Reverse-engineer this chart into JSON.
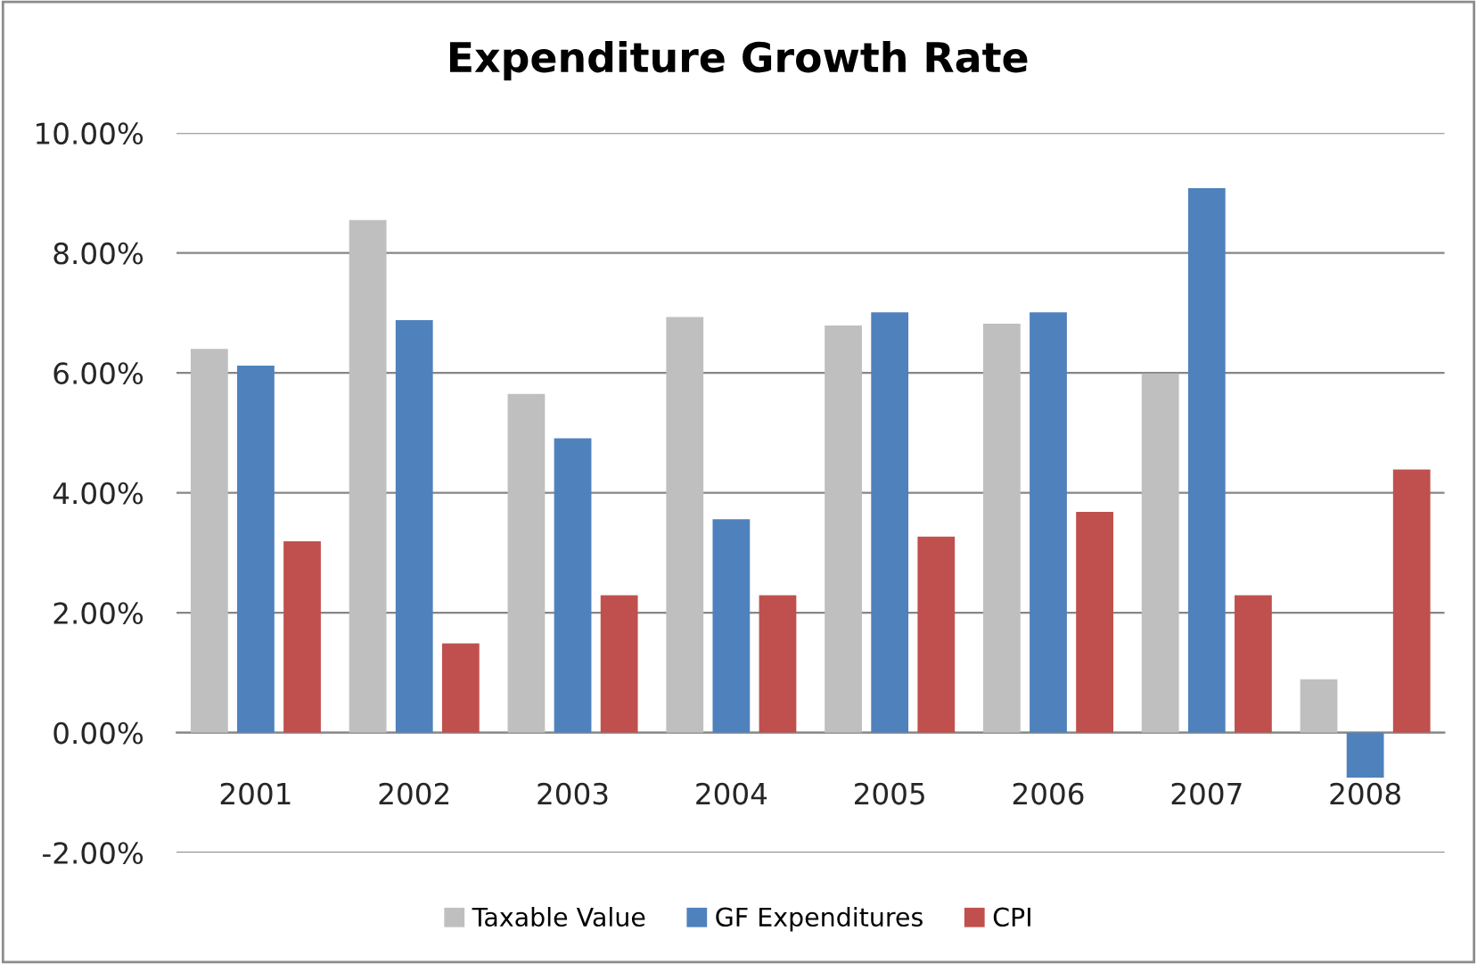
{
  "chart_data": {
    "type": "bar",
    "title": "Expenditure Growth Rate",
    "categories": [
      "2001",
      "2002",
      "2003",
      "2004",
      "2005",
      "2006",
      "2007",
      "2008"
    ],
    "series": [
      {
        "name": "Taxable Value",
        "color": "#bfbfbf",
        "values": [
          6.4,
          8.55,
          5.65,
          6.93,
          6.79,
          6.82,
          5.99,
          0.89
        ]
      },
      {
        "name": "GF Expenditures",
        "color": "#4f81bd",
        "values": [
          6.12,
          6.88,
          4.91,
          3.56,
          7.01,
          7.01,
          9.08,
          -0.75
        ]
      },
      {
        "name": "CPI",
        "color": "#c0504d",
        "values": [
          3.19,
          1.49,
          2.29,
          2.29,
          3.27,
          3.68,
          2.29,
          4.39
        ]
      }
    ],
    "ylim": [
      -2,
      10
    ],
    "yticks": [
      {
        "value": -2,
        "label": "-2.00%"
      },
      {
        "value": 0,
        "label": "0.00%"
      },
      {
        "value": 2,
        "label": "2.00%"
      },
      {
        "value": 4,
        "label": "4.00%"
      },
      {
        "value": 6,
        "label": "6.00%"
      },
      {
        "value": 8,
        "label": "8.00%"
      },
      {
        "value": 10,
        "label": "10.00%"
      }
    ],
    "grid": "y",
    "legend": "bottom"
  }
}
